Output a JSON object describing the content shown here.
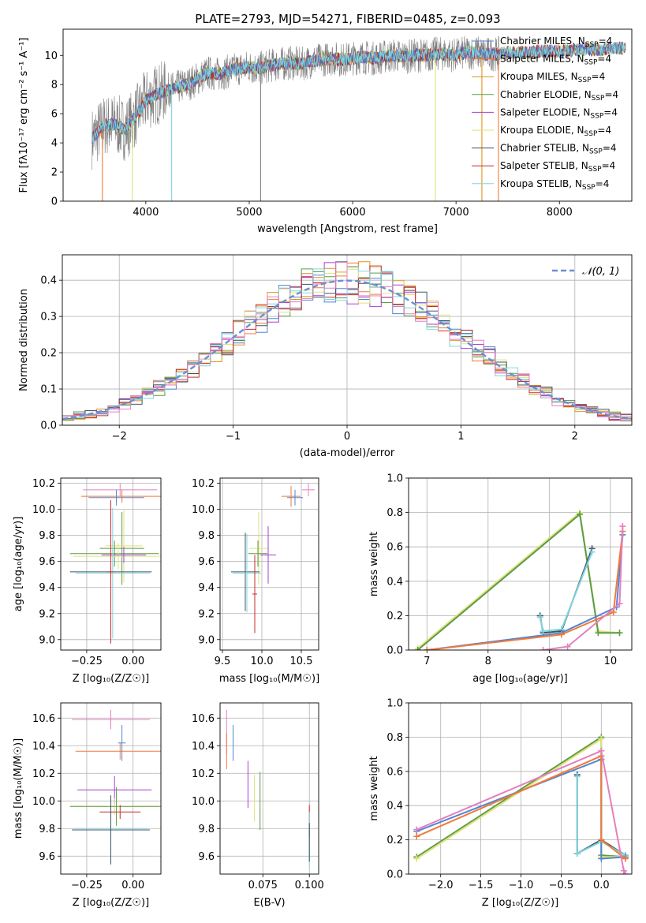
{
  "figure_title": "PLATE=2793, MJD=54271, FIBERID=0485, z=0.093",
  "colors": {
    "cmiles": "#4f86d4",
    "smiles": "#f07a3a",
    "kmiles": "#e0921e",
    "celodie": "#5c9c47",
    "selodie": "#a93fd1",
    "kelodie": "#dfe27a",
    "cstelib": "#3d5561",
    "sstelib": "#c82c2c",
    "kstelib": "#7fd6df",
    "gray": "#7f7f7f",
    "dashed": "#6b8fd6",
    "pink": "#e47fbe",
    "grid": "#b0b0b0"
  },
  "chart_data": [
    {
      "id": "spectrum",
      "type": "line",
      "title": "PLATE=2793, MJD=54271, FIBERID=0485, z=0.093",
      "xlabel": "wavelength [Angstrom, rest frame]",
      "ylabel": "Flux [fλ10⁻¹⁷ erg cm⁻² s⁻¹ A⁻¹]",
      "xlim": [
        3200,
        8700
      ],
      "ylim": [
        0,
        11.8
      ],
      "xticks": [
        4000,
        5000,
        6000,
        7000,
        8000
      ],
      "yticks": [
        0,
        2,
        4,
        6,
        8,
        10
      ],
      "grid": false,
      "legend_position": "upper right",
      "legend": [
        {
          "label": "Chabrier MILES, N",
          "sub": "SSP",
          "suffix": "=4",
          "color": "cmiles"
        },
        {
          "label": "Salpeter MILES, N",
          "sub": "SSP",
          "suffix": "=4",
          "color": "smiles"
        },
        {
          "label": "Kroupa MILES, N",
          "sub": "SSP",
          "suffix": "=4",
          "color": "kmiles"
        },
        {
          "label": "Chabrier ELODIE, N",
          "sub": "SSP",
          "suffix": "=4",
          "color": "celodie"
        },
        {
          "label": "Salpeter ELODIE, N",
          "sub": "SSP",
          "suffix": "=4",
          "color": "selodie"
        },
        {
          "label": "Kroupa ELODIE, N",
          "sub": "SSP",
          "suffix": "=4",
          "color": "kelodie"
        },
        {
          "label": "Chabrier STELIB, N",
          "sub": "SSP",
          "suffix": "=4",
          "color": "cstelib"
        },
        {
          "label": "Salpeter STELIB, N",
          "sub": "SSP",
          "suffix": "=4",
          "color": "sstelib"
        },
        {
          "label": "Kroupa STELIB, N",
          "sub": "SSP",
          "suffix": "=4",
          "color": "kstelib"
        }
      ],
      "model_curve": {
        "x": [
          3480,
          3520,
          3600,
          3700,
          3800,
          3900,
          4000,
          4100,
          4200,
          4300,
          4400,
          4500,
          4600,
          4700,
          4800,
          4900,
          5000,
          5100,
          5200,
          5300,
          5400,
          5500,
          5600,
          5700,
          5800,
          5900,
          6000,
          6100,
          6200,
          6300,
          6400,
          6500,
          6600,
          6700,
          6800,
          6900,
          7000,
          7100,
          7200,
          7300,
          7400,
          7500,
          7600,
          7700,
          7800,
          7900,
          8000,
          8100,
          8200,
          8300,
          8400,
          8500,
          8640
        ],
        "y": [
          4.3,
          4.6,
          5.2,
          5.3,
          4.9,
          5.8,
          6.9,
          7.3,
          7.6,
          7.8,
          8.0,
          8.4,
          8.8,
          8.7,
          8.9,
          9.1,
          9.2,
          9.1,
          9.3,
          9.4,
          9.5,
          9.4,
          9.6,
          9.7,
          9.8,
          9.7,
          9.8,
          9.9,
          9.8,
          9.9,
          10.0,
          9.9,
          10.0,
          10.0,
          10.1,
          10.1,
          10.0,
          10.2,
          10.2,
          10.1,
          10.1,
          10.2,
          10.2,
          10.2,
          10.3,
          10.3,
          10.3,
          10.3,
          10.4,
          10.4,
          10.4,
          10.5,
          10.5
        ]
      },
      "observed_noise_amplitude": 1.2,
      "observed_range": [
        3480,
        7420
      ],
      "spikes_to_zero": [
        {
          "x": 3580,
          "color": "smiles"
        },
        {
          "x": 3870,
          "color": "kelodie"
        },
        {
          "x": 4250,
          "color": "kstelib"
        },
        {
          "x": 5110,
          "color": "gray"
        },
        {
          "x": 6800,
          "color": "kelodie"
        },
        {
          "x": 7250,
          "color": "kmiles"
        },
        {
          "x": 7410,
          "color": "smiles"
        }
      ]
    },
    {
      "id": "residual_hist",
      "type": "histogram",
      "xlabel": "(data-model)/error",
      "ylabel": "Normed distribution",
      "xlim": [
        -2.5,
        2.5
      ],
      "ylim": [
        0,
        0.47
      ],
      "xticks": [
        -2,
        -1,
        0,
        1,
        2
      ],
      "yticks": [
        0.0,
        0.1,
        0.2,
        0.3,
        0.4
      ],
      "grid": true,
      "bin_width": 0.1,
      "series_colors": [
        "cmiles",
        "smiles",
        "kmiles",
        "celodie",
        "selodie",
        "kelodie",
        "cstelib",
        "sstelib",
        "kstelib",
        "pink"
      ],
      "reference_curve": {
        "name": "𝒩(0, 1)",
        "mean": 0,
        "sigma": 1,
        "style": "dashed",
        "color": "dashed"
      },
      "legend": [
        {
          "label": "𝒩(0, 1)",
          "color": "dashed"
        }
      ]
    },
    {
      "id": "age_vs_Z",
      "type": "errorbar",
      "xlabel": "Z [log₁₀(Z/Z☉)]",
      "ylabel": "age  [log₁₀(age/yr)]",
      "xlim": [
        -0.39,
        0.15
      ],
      "ylim": [
        8.92,
        10.24
      ],
      "xticks": [
        -0.25,
        0.0
      ],
      "yticks": [
        9.0,
        9.2,
        9.4,
        9.6,
        9.8,
        10.0,
        10.2
      ],
      "grid": true,
      "points": [
        {
          "x": -0.07,
          "y": 10.15,
          "xerr": 0.2,
          "yerr": 0.05,
          "color": "pink"
        },
        {
          "x": -0.06,
          "y": 10.1,
          "xerr": 0.22,
          "yerr": 0.05,
          "color": "smiles"
        },
        {
          "x": -0.09,
          "y": 10.09,
          "xerr": 0.15,
          "yerr": 0.06,
          "color": "cmiles"
        },
        {
          "x": -0.06,
          "y": 9.7,
          "xerr": 0.12,
          "yerr": 0.28,
          "color": "celodie"
        },
        {
          "x": -0.05,
          "y": 9.72,
          "xerr": 0.1,
          "yerr": 0.28,
          "color": "kelodie"
        },
        {
          "x": -0.1,
          "y": 9.66,
          "xerr": 0.24,
          "yerr": 0.1,
          "color": "celodie"
        },
        {
          "x": -0.08,
          "y": 9.64,
          "xerr": 0.24,
          "yerr": 0.1,
          "color": "kelodie"
        },
        {
          "x": -0.05,
          "y": 9.65,
          "xerr": 0.12,
          "yerr": 0.06,
          "color": "selodie"
        },
        {
          "x": -0.12,
          "y": 9.52,
          "xerr": 0.22,
          "yerr": 0.5,
          "color": "cstelib"
        },
        {
          "x": -0.11,
          "y": 9.51,
          "xerr": 0.2,
          "yerr": 0.5,
          "color": "kstelib"
        },
        {
          "x": -0.12,
          "y": 9.52,
          "xerr": 0.02,
          "yerr": 0.55,
          "color": "sstelib"
        }
      ]
    },
    {
      "id": "age_vs_mass",
      "type": "errorbar",
      "xlabel": "mass [log₁₀(M/M☉)]",
      "ylabel": "",
      "xlim": [
        9.47,
        10.72
      ],
      "ylim": [
        8.92,
        10.24
      ],
      "xticks": [
        9.5,
        10.0,
        10.5
      ],
      "yticks": [
        9.0,
        9.2,
        9.4,
        9.6,
        9.8,
        10.0,
        10.2
      ],
      "grid": true,
      "points": [
        {
          "x": 10.59,
          "y": 10.15,
          "xerr": 0.08,
          "yerr": 0.05,
          "color": "pink"
        },
        {
          "x": 10.37,
          "y": 10.1,
          "xerr": 0.12,
          "yerr": 0.08,
          "color": "smiles"
        },
        {
          "x": 10.42,
          "y": 10.09,
          "xerr": 0.1,
          "yerr": 0.06,
          "color": "cmiles"
        },
        {
          "x": 9.96,
          "y": 9.7,
          "xerr": 0.12,
          "yerr": 0.28,
          "color": "kelodie"
        },
        {
          "x": 9.95,
          "y": 9.66,
          "xerr": 0.12,
          "yerr": 0.1,
          "color": "celodie"
        },
        {
          "x": 10.08,
          "y": 9.65,
          "xerr": 0.1,
          "yerr": 0.22,
          "color": "selodie"
        },
        {
          "x": 9.79,
          "y": 9.52,
          "xerr": 0.18,
          "yerr": 0.3,
          "color": "cstelib"
        },
        {
          "x": 9.81,
          "y": 9.51,
          "xerr": 0.18,
          "yerr": 0.3,
          "color": "kstelib"
        },
        {
          "x": 9.91,
          "y": 9.35,
          "xerr": 0.03,
          "yerr": 0.3,
          "color": "sstelib"
        }
      ]
    },
    {
      "id": "weight_vs_age",
      "type": "line",
      "xlabel": "age  [log₁₀(age/yr)]",
      "ylabel": "mass weight",
      "xlim": [
        6.7,
        10.35
      ],
      "ylim": [
        0,
        1.0
      ],
      "xticks": [
        7,
        8,
        9,
        10
      ],
      "yticks": [
        0.0,
        0.2,
        0.4,
        0.6,
        0.8,
        1.0
      ],
      "grid": true,
      "series": [
        {
          "color": "kelodie",
          "x": [
            6.85,
            9.5,
            9.8,
            10.15
          ],
          "y": [
            0.01,
            0.8,
            0.11,
            0.1
          ]
        },
        {
          "color": "celodie",
          "x": [
            6.85,
            9.5,
            9.8,
            10.15
          ],
          "y": [
            0.0,
            0.79,
            0.1,
            0.1
          ]
        },
        {
          "color": "cstelib",
          "x": [
            8.85,
            8.9,
            9.2,
            9.7
          ],
          "y": [
            0.2,
            0.1,
            0.11,
            0.59
          ]
        },
        {
          "color": "kstelib",
          "x": [
            8.85,
            8.9,
            9.2,
            9.7
          ],
          "y": [
            0.19,
            0.11,
            0.12,
            0.57
          ]
        },
        {
          "color": "cmiles",
          "x": [
            7.0,
            9.2,
            10.1,
            10.2
          ],
          "y": [
            0.0,
            0.1,
            0.25,
            0.67
          ]
        },
        {
          "color": "smiles",
          "x": [
            7.0,
            9.2,
            10.05,
            10.2
          ],
          "y": [
            0.0,
            0.09,
            0.22,
            0.69
          ]
        },
        {
          "color": "pink",
          "x": [
            8.9,
            9.3,
            10.15,
            10.2
          ],
          "y": [
            0.0,
            0.02,
            0.27,
            0.72
          ]
        }
      ]
    },
    {
      "id": "mass_vs_Z",
      "type": "errorbar",
      "xlabel": "Z [log₁₀(Z/Z☉)]",
      "ylabel": "mass [log₁₀(M/M☉)]",
      "xlim": [
        -0.39,
        0.15
      ],
      "ylim": [
        9.47,
        10.71
      ],
      "xticks": [
        -0.25,
        0.0
      ],
      "yticks": [
        9.6,
        9.8,
        10.0,
        10.2,
        10.4,
        10.6
      ],
      "grid": true,
      "points": [
        {
          "x": -0.12,
          "y": 10.59,
          "xerr": 0.21,
          "yerr": 0.07,
          "color": "pink"
        },
        {
          "x": -0.07,
          "y": 10.36,
          "xerr": 0.24,
          "yerr": 0.06,
          "color": "smiles"
        },
        {
          "x": -0.06,
          "y": 10.42,
          "xerr": 0.02,
          "yerr": 0.13,
          "color": "cmiles"
        },
        {
          "x": -0.1,
          "y": 10.08,
          "xerr": 0.2,
          "yerr": 0.1,
          "color": "selodie"
        },
        {
          "x": -0.1,
          "y": 9.96,
          "xerr": 0.24,
          "yerr": 0.06,
          "color": "kelodie"
        },
        {
          "x": -0.09,
          "y": 9.96,
          "xerr": 0.25,
          "yerr": 0.14,
          "color": "celodie"
        },
        {
          "x": -0.07,
          "y": 9.92,
          "xerr": 0.11,
          "yerr": 0.05,
          "color": "sstelib"
        },
        {
          "x": -0.12,
          "y": 9.8,
          "xerr": 0.2,
          "yerr": 0.22,
          "color": "kstelib"
        },
        {
          "x": -0.12,
          "y": 9.79,
          "xerr": 0.21,
          "yerr": 0.25,
          "color": "cstelib"
        }
      ]
    },
    {
      "id": "mass_vs_ebv",
      "type": "errorbar",
      "xlabel": "E(B-V)",
      "ylabel": "",
      "xlim": [
        0.052,
        0.105
      ],
      "ylim": [
        9.47,
        10.71
      ],
      "xticks": [
        0.075,
        0.1
      ],
      "yticks": [
        9.6,
        9.8,
        10.0,
        10.2,
        10.4,
        10.6
      ],
      "grid": true,
      "points": [
        {
          "x": 0.0555,
          "y": 10.5,
          "xerr": 0,
          "yerr": 0.16,
          "color": "pink"
        },
        {
          "x": 0.0555,
          "y": 10.36,
          "xerr": 0,
          "yerr": 0.13,
          "color": "smiles"
        },
        {
          "x": 0.059,
          "y": 10.42,
          "xerr": 0,
          "yerr": 0.13,
          "color": "cmiles"
        },
        {
          "x": 0.067,
          "y": 10.12,
          "xerr": 0,
          "yerr": 0.17,
          "color": "selodie"
        },
        {
          "x": 0.0705,
          "y": 10.02,
          "xerr": 0,
          "yerr": 0.17,
          "color": "kelodie"
        },
        {
          "x": 0.0735,
          "y": 10.0,
          "xerr": 0,
          "yerr": 0.21,
          "color": "celodie"
        },
        {
          "x": 0.1,
          "y": 9.85,
          "xerr": 0,
          "yerr": 0.12,
          "color": "sstelib"
        },
        {
          "x": 0.1,
          "y": 9.72,
          "xerr": 0,
          "yerr": 0.2,
          "color": "kstelib"
        },
        {
          "x": 0.1,
          "y": 9.7,
          "xerr": 0,
          "yerr": 0.14,
          "color": "cstelib"
        }
      ]
    },
    {
      "id": "weight_vs_Z",
      "type": "line",
      "xlabel": "Z [log₁₀(Z/Z☉)]",
      "ylabel": "mass weight",
      "xlim": [
        -2.4,
        0.38
      ],
      "ylim": [
        0,
        1.0
      ],
      "xticks": [
        -2.0,
        -1.5,
        -1.0,
        -0.5,
        0.0
      ],
      "yticks": [
        0.0,
        0.2,
        0.4,
        0.6,
        0.8,
        1.0
      ],
      "grid": true,
      "series": [
        {
          "color": "celodie",
          "x": [
            -2.3,
            0.0,
            0.0,
            0.3
          ],
          "y": [
            0.1,
            0.8,
            0.11,
            0.1
          ]
        },
        {
          "color": "kelodie",
          "x": [
            -2.3,
            0.0,
            0.0,
            0.3
          ],
          "y": [
            0.09,
            0.79,
            0.1,
            0.1
          ]
        },
        {
          "color": "cstelib",
          "x": [
            -0.3,
            -0.3,
            0.0,
            0.3
          ],
          "y": [
            0.58,
            0.12,
            0.2,
            0.11
          ]
        },
        {
          "color": "kstelib",
          "x": [
            -0.3,
            -0.3,
            0.0,
            0.3
          ],
          "y": [
            0.57,
            0.12,
            0.19,
            0.11
          ]
        },
        {
          "color": "cmiles",
          "x": [
            -2.3,
            0.0,
            0.0,
            0.3
          ],
          "y": [
            0.25,
            0.67,
            0.09,
            0.1
          ]
        },
        {
          "color": "smiles",
          "x": [
            -2.3,
            0.0,
            0.0,
            0.3
          ],
          "y": [
            0.22,
            0.69,
            0.2,
            0.09
          ]
        },
        {
          "color": "pink",
          "x": [
            -2.3,
            0.0,
            0.28,
            0.3
          ],
          "y": [
            0.26,
            0.72,
            0.02,
            0.0
          ]
        }
      ]
    }
  ]
}
